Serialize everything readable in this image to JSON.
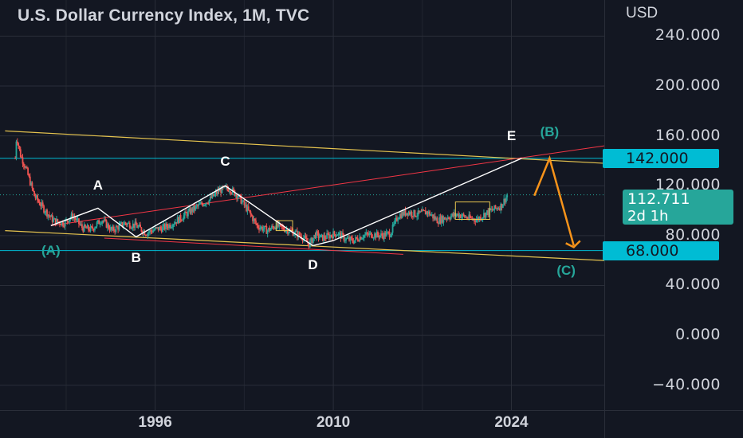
{
  "header": {
    "title": "U.S. Dollar Currency Index, 1M, TVC"
  },
  "chart_data": {
    "type": "line",
    "title": "U.S. Dollar Currency Index, 1M, TVC",
    "xlabel": "",
    "ylabel": "",
    "y_unit": "USD",
    "y_ticks": [
      "240.000",
      "200.000",
      "160.000",
      "120.000",
      "80.000",
      "40.000",
      "0.000",
      "−40.000"
    ],
    "y_tick_values": [
      240,
      200,
      160,
      120,
      80,
      40,
      0,
      -40
    ],
    "x_ticks": [
      "1996",
      "2010",
      "2024"
    ],
    "x_tick_values": [
      1996,
      2010,
      2024
    ],
    "xlim": [
      1983.8,
      2031.3
    ],
    "ylim": [
      -60,
      269
    ],
    "grid": true,
    "series": [
      {
        "type": "candlestick-approx",
        "x": [
          1985.0,
          1985.1,
          1985.4,
          1985.8,
          1986.5,
          1987.2,
          1988.0,
          1988.8,
          1989.5,
          1990.3,
          1991.0,
          1991.8,
          1992.6,
          1993.6,
          1994.5,
          1995.3,
          1996.0,
          1996.6,
          1997.2,
          1998.0,
          1998.8,
          1999.6,
          2000.3,
          2001.0,
          2001.8,
          2002.5,
          2003.3,
          2004.0,
          2004.8,
          2005.5,
          2006.3,
          2007.0,
          2007.6,
          2008.1,
          2008.6,
          2009.1,
          2009.7,
          2010.3,
          2011.0,
          2011.6,
          2012.3,
          2013.0,
          2013.8,
          2014.5,
          2015.1,
          2015.8,
          2016.6,
          2017.4,
          2018.2,
          2019.0,
          2019.8,
          2020.6,
          2021.3,
          2022.0,
          2022.6,
          2023.2,
          2023.7
        ],
        "y": [
          142,
          160,
          145,
          135,
          112,
          102,
          92,
          90,
          96,
          86,
          85,
          93,
          84,
          90,
          88,
          82,
          85,
          86,
          89,
          94,
          100,
          105,
          109,
          116,
          118,
          112,
          100,
          88,
          84,
          88,
          85,
          82,
          79,
          73,
          81,
          78,
          80,
          82,
          77,
          76,
          80,
          81,
          80,
          82,
          96,
          99,
          97,
          99,
          92,
          95,
          97,
          94,
          93,
          98,
          101,
          104,
          113
        ]
      }
    ],
    "levels": [
      {
        "label": "142.000",
        "value": 142,
        "color": "#00bcd4"
      },
      {
        "label": "68.000",
        "value": 68,
        "color": "#00bcd4"
      }
    ],
    "current_price": {
      "value": "112.711",
      "countdown": "2d 1h",
      "color": "#26a69a"
    },
    "wave_labels": [
      {
        "text": "A",
        "color": "#ffffff"
      },
      {
        "text": "B",
        "color": "#ffffff"
      },
      {
        "text": "C",
        "color": "#ffffff"
      },
      {
        "text": "D",
        "color": "#ffffff"
      },
      {
        "text": "E",
        "color": "#ffffff"
      },
      {
        "text": "(A)",
        "color": "#26a69a"
      },
      {
        "text": "(B)",
        "color": "#26a69a"
      },
      {
        "text": "(C)",
        "color": "#26a69a"
      }
    ],
    "wave_points": [
      {
        "label": "A",
        "x": 1991.5,
        "y": 100
      },
      {
        "label": "B",
        "x": 1992.0,
        "y": 78
      },
      {
        "label": "C",
        "x": 2001.5,
        "y": 120
      },
      {
        "label": "D",
        "x": 2008.4,
        "y": 71
      },
      {
        "label": "E",
        "x": 2024.8,
        "y": 142
      },
      {
        "label": "(A)",
        "x": 1987.8,
        "y": 88
      },
      {
        "label": "(C)",
        "x": 2028.3,
        "y": 70
      }
    ],
    "trendlines": {
      "upper_yellow": [
        [
          1984.2,
          164
        ],
        [
          2031.3,
          138
        ]
      ],
      "lower_yellow": [
        [
          1984.2,
          84
        ],
        [
          2031.3,
          60
        ]
      ],
      "red_upper": [
        [
          1987.8,
          88
        ],
        [
          2031.3,
          152
        ]
      ],
      "red_lower": [
        [
          1992.0,
          78
        ],
        [
          2015.5,
          65
        ]
      ],
      "orange_forecast": [
        [
          2025.8,
          112
        ],
        [
          2027.0,
          142
        ],
        [
          2028.9,
          72
        ]
      ]
    },
    "colors": {
      "background": "#131722",
      "grid": "#2a2e39",
      "up": "#26a69a",
      "down": "#ef5350",
      "trend_yellow": "#e6c44f",
      "trend_red": "#f23645",
      "forecast": "#f7931a",
      "wave": "#ffffff",
      "axis_text": "#d1d4dc"
    }
  }
}
